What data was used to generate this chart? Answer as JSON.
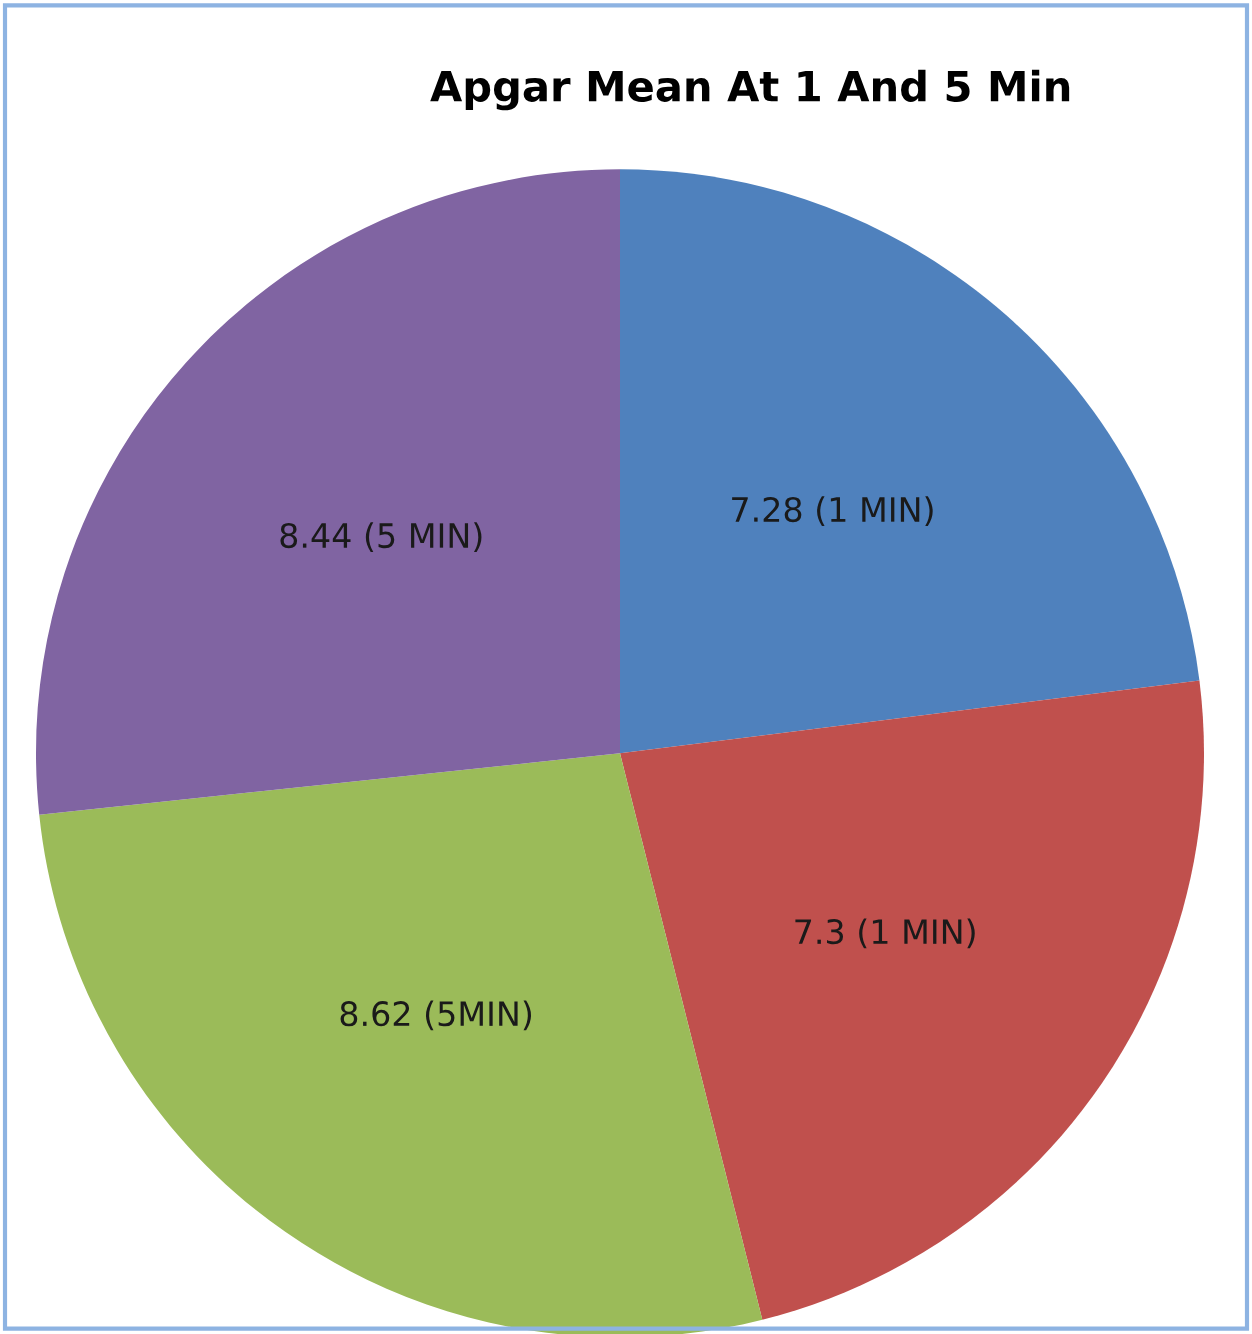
{
  "chart_data": {
    "type": "pie",
    "title": "Apgar Mean At 1 And 5 Min",
    "categories": [
      null,
      null,
      null,
      null
    ],
    "values": [
      7.28,
      7.3,
      8.62,
      8.44
    ],
    "value_labels": [
      "7.28 (1 MIN)",
      "7.3 (1 MIN)",
      "8.62 (5MIN)",
      "8.44 (5 MIN)"
    ],
    "colors": [
      "#4f81bd",
      "#c0504d",
      "#9bbb59",
      "#8064a2"
    ],
    "legend": false
  }
}
